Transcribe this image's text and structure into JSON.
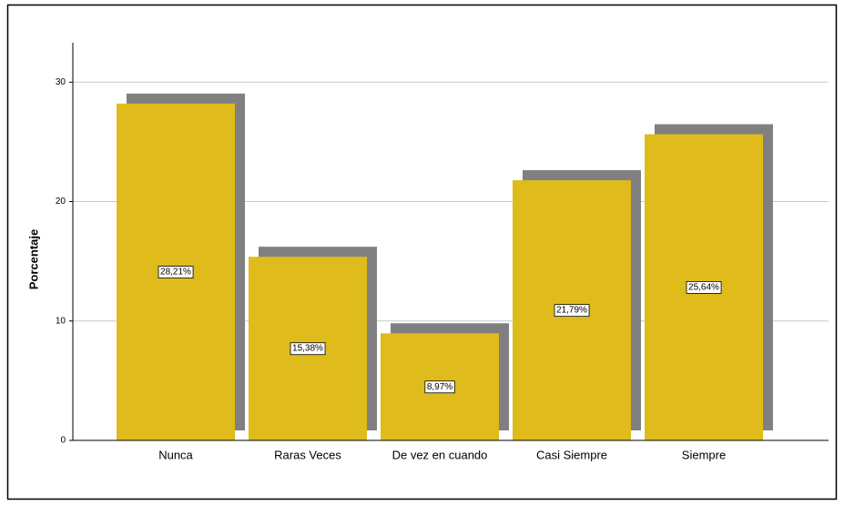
{
  "chart_data": {
    "type": "bar",
    "ylabel": "Porcentaje",
    "categories": [
      "Nunca",
      "Raras Veces",
      "De vez en cuando",
      "Casi Siempre",
      "Siempre"
    ],
    "values": [
      28.21,
      15.38,
      8.97,
      21.79,
      25.64
    ],
    "value_labels": [
      "28,21%",
      "15,38%",
      "8,97%",
      "21,79%",
      "25,64%"
    ],
    "color": "#dfbb1c",
    "shadow_color": "#808080",
    "ylim": [
      0,
      33.3
    ],
    "yticks": [
      0,
      10,
      20,
      30
    ],
    "grid": true
  }
}
